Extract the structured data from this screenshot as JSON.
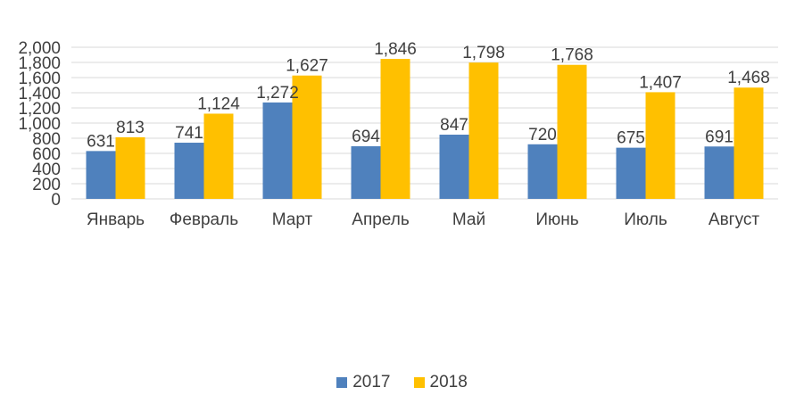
{
  "chart_data": {
    "type": "bar",
    "categories": [
      "Январь",
      "Февраль",
      "Март",
      "Апрель",
      "Май",
      "Июнь",
      "Июль",
      "Август"
    ],
    "series": [
      {
        "name": "2017",
        "color": "#4F81BD",
        "values": [
          631,
          741,
          1272,
          694,
          847,
          720,
          675,
          691
        ],
        "value_labels": [
          "631",
          "741",
          "1,272",
          "694",
          "847",
          "720",
          "675",
          "691"
        ]
      },
      {
        "name": "2018",
        "color": "#FFC000",
        "values": [
          813,
          1124,
          1627,
          1846,
          1798,
          1768,
          1407,
          1468
        ],
        "value_labels": [
          "813",
          "1,124",
          "1,627",
          "1,846",
          "1,798",
          "1,768",
          "1,407",
          "1,468"
        ]
      }
    ],
    "ylim": [
      0,
      2000
    ],
    "y_ticks": [
      "0",
      "200",
      "400",
      "600",
      "800",
      "1,000",
      "1,200",
      "1,400",
      "1,600",
      "1,800",
      "2,000"
    ],
    "grid": true,
    "legend_position": "bottom"
  }
}
